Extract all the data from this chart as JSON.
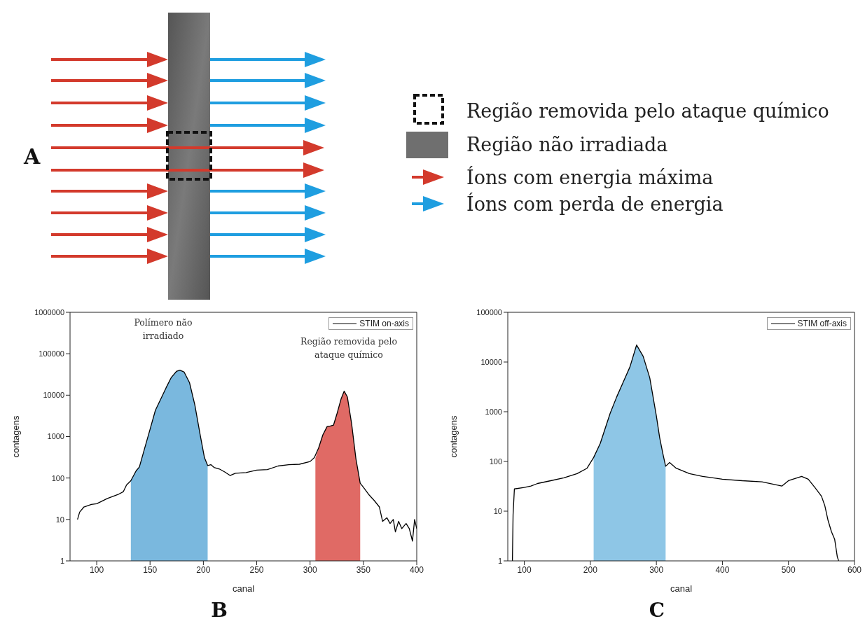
{
  "chart_data": [
    {
      "type": "other",
      "title": "A",
      "annotations": [
        "Região removida pelo ataque químico",
        "Região não irradiada",
        "Íons com energia máxima",
        "Íons com perda de energia"
      ]
    },
    {
      "type": "line",
      "title": "B",
      "xlabel": "canal",
      "ylabel": "contagens",
      "log": "y",
      "xlim": [
        75,
        400
      ],
      "xticks": [
        100,
        150,
        200,
        250,
        300,
        350,
        400
      ],
      "ylim": [
        1,
        1000000
      ],
      "yticks": [
        1,
        10,
        100,
        1000,
        10000,
        100000,
        1000000
      ],
      "legend": "top right",
      "annotations": [
        "Polímero não irradiado",
        "Região removida pelo ataque químico"
      ],
      "series": [
        {
          "type": "area",
          "color": "#7ab8de",
          "x": [
            132,
            137,
            140,
            145,
            150,
            155,
            160,
            165,
            170,
            175,
            178,
            182,
            187,
            192,
            197,
            201,
            204
          ],
          "values": [
            86,
            150,
            185,
            530,
            1500,
            4300,
            8000,
            15000,
            27000,
            38000,
            40000,
            36000,
            20000,
            5800,
            1100,
            310,
            200
          ]
        },
        {
          "type": "area",
          "color": "#e06a65",
          "x": [
            305,
            308,
            312,
            316,
            319,
            322,
            325,
            329,
            332,
            335,
            339,
            343,
            347
          ],
          "values": [
            300,
            530,
            1100,
            1750,
            1800,
            1900,
            3400,
            8000,
            12500,
            9000,
            2000,
            290,
            75
          ]
        },
        {
          "type": "line",
          "name": "STIM on-axis",
          "color": "#000000",
          "x": [
            82,
            84,
            88,
            95,
            100,
            110,
            120,
            125,
            128,
            132,
            137,
            140,
            145,
            150,
            155,
            160,
            165,
            170,
            175,
            178,
            182,
            187,
            192,
            197,
            201,
            204,
            207,
            210,
            215,
            220,
            225,
            230,
            240,
            250,
            260,
            270,
            280,
            290,
            300,
            304,
            308,
            312,
            316,
            319,
            322,
            325,
            329,
            332,
            335,
            339,
            343,
            347,
            350,
            355,
            360,
            365,
            368,
            372,
            375,
            378,
            380,
            383,
            386,
            390,
            393,
            396,
            398,
            400
          ],
          "values": [
            10,
            15,
            20,
            23,
            24,
            32,
            40,
            47,
            68,
            86,
            150,
            185,
            530,
            1500,
            4300,
            8000,
            15000,
            27000,
            38000,
            40000,
            36000,
            20000,
            5800,
            1100,
            310,
            200,
            210,
            180,
            165,
            140,
            115,
            130,
            135,
            155,
            160,
            195,
            210,
            215,
            250,
            310,
            530,
            1100,
            1750,
            1800,
            1900,
            3400,
            8000,
            12500,
            9000,
            2000,
            290,
            75,
            60,
            40,
            29,
            20,
            9,
            11,
            8,
            10,
            5,
            9,
            6,
            8,
            6,
            3,
            10,
            6
          ]
        }
      ]
    },
    {
      "type": "line",
      "title": "C",
      "xlabel": "canal",
      "ylabel": "contagens",
      "log": "y",
      "xlim": [
        75,
        600
      ],
      "xticks": [
        100,
        200,
        300,
        400,
        500,
        600
      ],
      "ylim": [
        1,
        100000
      ],
      "yticks": [
        1,
        10,
        100,
        1000,
        10000,
        100000
      ],
      "legend": "top right",
      "series": [
        {
          "type": "area",
          "color": "#8ec6e6",
          "x": [
            205,
            215,
            230,
            240,
            250,
            260,
            270,
            280,
            290,
            300,
            305,
            310,
            314
          ],
          "values": [
            120,
            230,
            930,
            2000,
            4000,
            8000,
            22000,
            13000,
            4800,
            820,
            300,
            140,
            80
          ]
        },
        {
          "type": "line",
          "name": "STIM off-axis",
          "color": "#000000",
          "x": [
            82,
            83,
            85,
            100,
            110,
            120,
            140,
            160,
            180,
            195,
            205,
            215,
            230,
            240,
            250,
            260,
            270,
            280,
            290,
            300,
            305,
            310,
            314,
            320,
            330,
            350,
            370,
            400,
            430,
            460,
            490,
            500,
            520,
            530,
            540,
            550,
            555,
            560,
            565,
            570,
            574,
            576
          ],
          "values": [
            1,
            8.5,
            28,
            30,
            32,
            36,
            41,
            47,
            57,
            73,
            120,
            230,
            930,
            2000,
            4000,
            8000,
            22000,
            13000,
            4800,
            820,
            300,
            140,
            80,
            95,
            73,
            57,
            50,
            44,
            41,
            39,
            32,
            41,
            50,
            44,
            30,
            20,
            13,
            6.5,
            3.9,
            2.7,
            1.2,
            1
          ]
        }
      ]
    }
  ]
}
